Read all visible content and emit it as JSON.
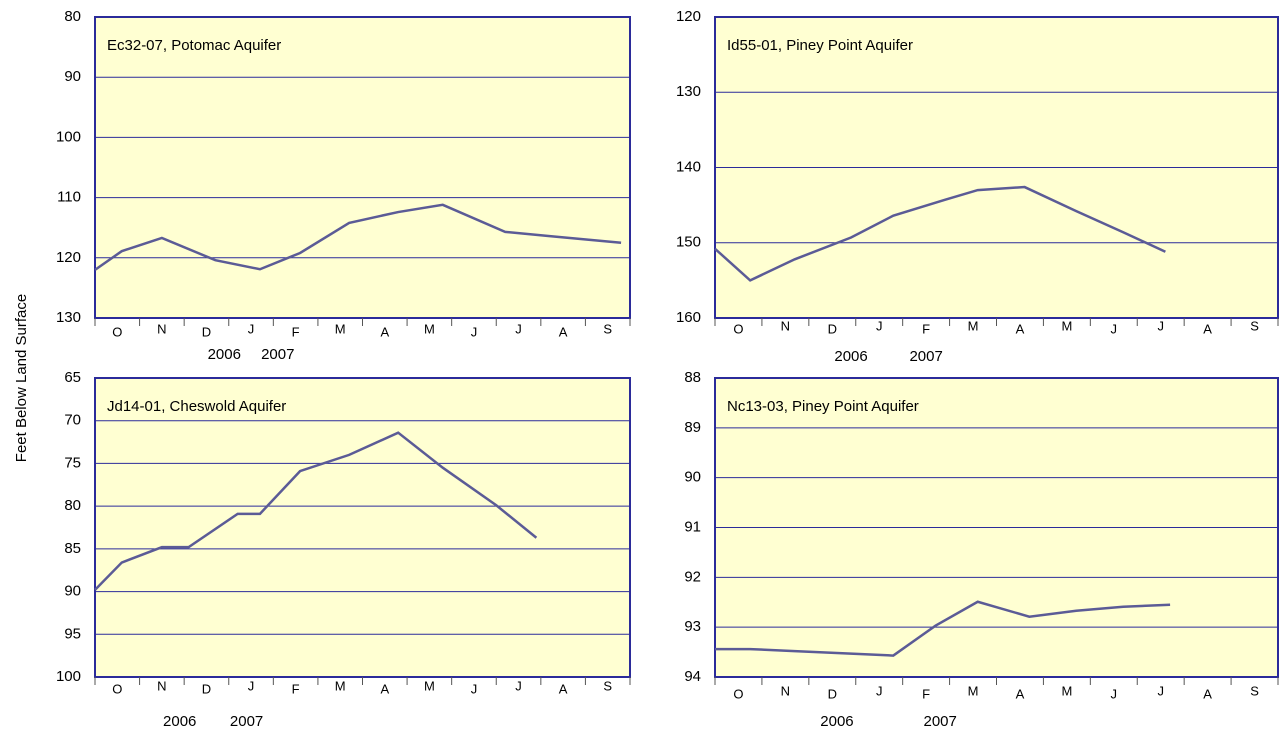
{
  "axis_label": "Feet Below Land Surface",
  "chart_data": [
    {
      "type": "line",
      "title": "Ec32-07, Potomac Aquifer",
      "categories": [
        "O",
        "N",
        "D",
        "J",
        "F",
        "M",
        "A",
        "M",
        "J",
        "J",
        "A",
        "S"
      ],
      "years": [
        "2006",
        "2007"
      ],
      "xlim": [
        0,
        12
      ],
      "ylim": [
        80,
        130
      ],
      "yticks": [
        80,
        90,
        100,
        110,
        120,
        130
      ],
      "grid": true,
      "series": [
        {
          "color": "#5b5b96",
          "x": [
            0,
            0.6,
            1.5,
            2.7,
            3.7,
            4.6,
            5.7,
            6.8,
            7.8,
            9.2,
            10.2,
            11.8
          ],
          "values": [
            122.0,
            118.9,
            116.7,
            120.4,
            121.9,
            119.2,
            114.2,
            112.4,
            111.2,
            115.7,
            116.4,
            117.5
          ]
        }
      ]
    },
    {
      "type": "line",
      "title": "Id55-01, Piney Point Aquifer",
      "categories": [
        "O",
        "N",
        "D",
        "J",
        "F",
        "M",
        "A",
        "M",
        "J",
        "J",
        "A",
        "S"
      ],
      "years": [
        "2006",
        "2007"
      ],
      "xlim": [
        0,
        12
      ],
      "ylim": [
        120,
        160
      ],
      "yticks": [
        120,
        130,
        140,
        150,
        160
      ],
      "grid": true,
      "series": [
        {
          "color": "#5b5b96",
          "x": [
            0,
            0.75,
            1.7,
            2.9,
            3.8,
            4.9,
            5.6,
            6.6,
            7.7,
            8.7,
            9.6
          ],
          "values": [
            150.8,
            155.0,
            152.2,
            149.3,
            146.4,
            144.3,
            143.0,
            142.6,
            145.8,
            148.6,
            151.2
          ]
        }
      ]
    },
    {
      "type": "line",
      "title": "Jd14-01, Cheswold Aquifer",
      "categories": [
        "O",
        "N",
        "D",
        "J",
        "F",
        "M",
        "A",
        "M",
        "J",
        "J",
        "A",
        "S"
      ],
      "years": [
        "2006",
        "2007"
      ],
      "xlim": [
        0,
        12
      ],
      "ylim": [
        65,
        100
      ],
      "yticks": [
        65,
        70,
        75,
        80,
        85,
        90,
        95,
        100
      ],
      "grid": true,
      "series": [
        {
          "color": "#5b5b96",
          "x": [
            0,
            0.6,
            1.5,
            2.1,
            3.2,
            3.7,
            4.6,
            5.7,
            6.8,
            7.8,
            9.0,
            9.9
          ],
          "values": [
            89.8,
            86.6,
            84.8,
            84.8,
            80.9,
            80.9,
            75.9,
            74.0,
            71.4,
            75.5,
            79.9,
            83.7
          ]
        }
      ]
    },
    {
      "type": "line",
      "title": "Nc13-03, Piney Point Aquifer",
      "categories": [
        "O",
        "N",
        "D",
        "J",
        "F",
        "M",
        "A",
        "M",
        "J",
        "J",
        "A",
        "S"
      ],
      "years": [
        "2006",
        "2007"
      ],
      "xlim": [
        0,
        12
      ],
      "ylim": [
        88,
        94
      ],
      "yticks": [
        88,
        89,
        90,
        91,
        92,
        93,
        94
      ],
      "grid": true,
      "series": [
        {
          "color": "#5b5b96",
          "x": [
            0,
            0.75,
            1.7,
            3.8,
            4.7,
            5.6,
            6.7,
            7.7,
            8.7,
            9.7
          ],
          "values": [
            93.44,
            93.44,
            93.48,
            93.57,
            92.97,
            92.49,
            92.79,
            92.67,
            92.59,
            92.55
          ]
        }
      ]
    }
  ]
}
